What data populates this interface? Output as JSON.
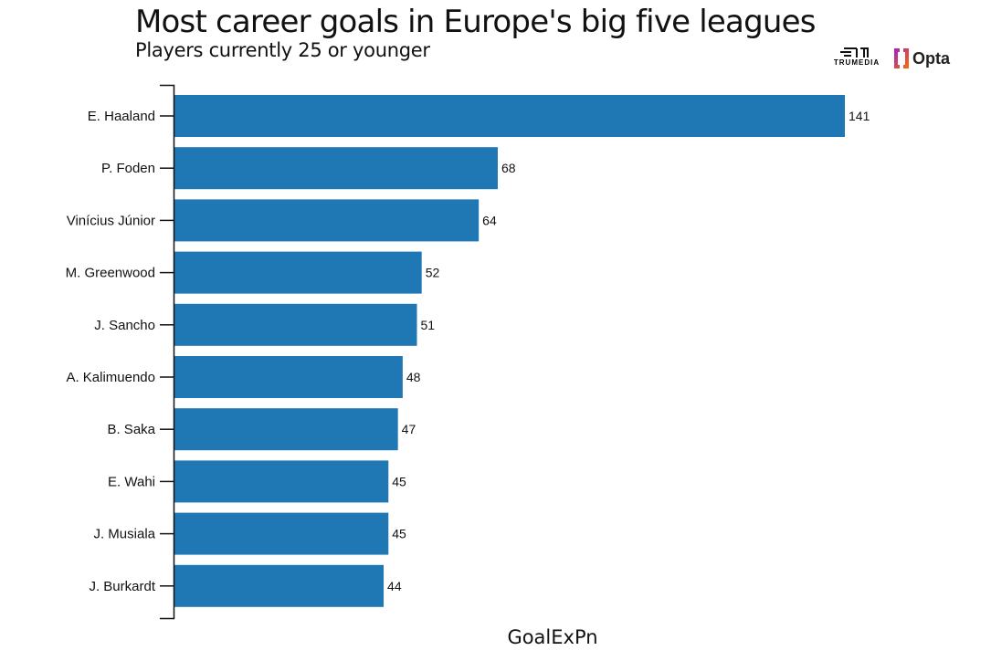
{
  "chart_data": {
    "type": "bar",
    "orientation": "horizontal",
    "title": "Most career goals in Europe's big five leagues",
    "subtitle": "Players currently 25 or younger",
    "xlabel": "GoalExPn",
    "categories": [
      "E. Haaland",
      "P. Foden",
      "Vinícius Júnior",
      "M. Greenwood",
      "J. Sancho",
      "A. Kalimuendo",
      "B. Saka",
      "E. Wahi",
      "J. Musiala",
      "J. Burkardt"
    ],
    "values": [
      141,
      68,
      64,
      52,
      51,
      48,
      47,
      45,
      45,
      44
    ],
    "xlim": [
      0,
      141
    ],
    "bar_color": "#1f77b4",
    "grid": false,
    "data_labels": true
  },
  "logos": {
    "trumedia": "TRUMEDIA",
    "opta": "Opta"
  }
}
